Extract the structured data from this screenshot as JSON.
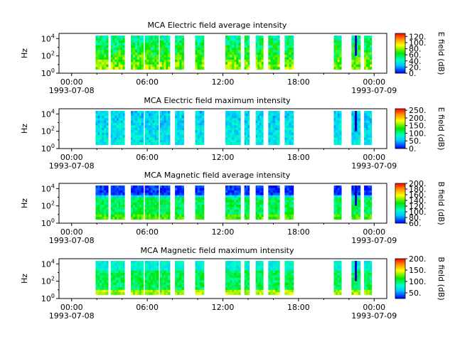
{
  "figure": {
    "x_ticks": [
      {
        "t": 0,
        "label": "00:00",
        "date": "1993-07-08"
      },
      {
        "t": 6,
        "label": "06:00",
        "date": ""
      },
      {
        "t": 12,
        "label": "12:00",
        "date": ""
      },
      {
        "t": 18,
        "label": "18:00",
        "date": ""
      },
      {
        "t": 24,
        "label": "00:00",
        "date": "1993-07-09"
      }
    ],
    "xlim_hours": [
      -1,
      25
    ],
    "y_label": "Hz",
    "y_ticks": [
      "10^0",
      "10^2",
      "10^4"
    ],
    "y_scale": "log",
    "ylim_log10": [
      0,
      4.6
    ],
    "data_band_log10": [
      0.45,
      4.35
    ],
    "colormap": "rainbow (blue-cyan-green-yellow-red)",
    "observation_intervals_hours": [
      [
        1.9,
        2.9
      ],
      [
        3.1,
        4.2
      ],
      [
        4.7,
        5.7
      ],
      [
        5.8,
        6.9
      ],
      [
        7.0,
        7.8
      ],
      [
        8.2,
        8.9
      ],
      [
        9.8,
        10.5
      ],
      [
        12.2,
        13.4
      ],
      [
        13.7,
        14.1
      ],
      [
        14.6,
        15.2
      ],
      [
        15.6,
        16.5
      ],
      [
        16.9,
        17.6
      ],
      [
        20.8,
        21.4
      ],
      [
        22.2,
        22.9
      ],
      [
        23.2,
        23.8
      ]
    ],
    "event_hour": 22.55
  },
  "chart_data": [
    {
      "type": "heatmap",
      "title": "MCA  Electric field average intensity",
      "ylabel": "Hz",
      "colorbar_label": "E field (dB)",
      "colorbar_ticks": [
        "0.",
        "20.",
        "40.",
        "60.",
        "80.",
        "100.",
        "120."
      ],
      "clim": [
        0,
        130
      ],
      "typical_level_dB": 60
    },
    {
      "type": "heatmap",
      "title": "MCA  Electric field maximum intensity",
      "ylabel": "Hz",
      "colorbar_label": "E field (dB)",
      "colorbar_ticks": [
        "0.",
        "50.",
        "100.",
        "150.",
        "200.",
        "250."
      ],
      "clim": [
        0,
        260
      ],
      "typical_level_dB": 90
    },
    {
      "type": "heatmap",
      "title": "MCA  Magnetic field average intensity",
      "ylabel": "Hz",
      "colorbar_label": "B field (dB)",
      "colorbar_ticks": [
        "60.",
        "80.",
        "100.",
        "120.",
        "140.",
        "160.",
        "180.",
        "200."
      ],
      "clim": [
        60,
        200
      ],
      "typical_level_dB": 120
    },
    {
      "type": "heatmap",
      "title": "MCA  Magnetic field maximum intensity",
      "ylabel": "Hz",
      "colorbar_label": "B field (dB)",
      "colorbar_ticks": [
        "50.",
        "100.",
        "150.",
        "200."
      ],
      "clim": [
        25,
        200
      ],
      "typical_level_dB": 100
    }
  ]
}
